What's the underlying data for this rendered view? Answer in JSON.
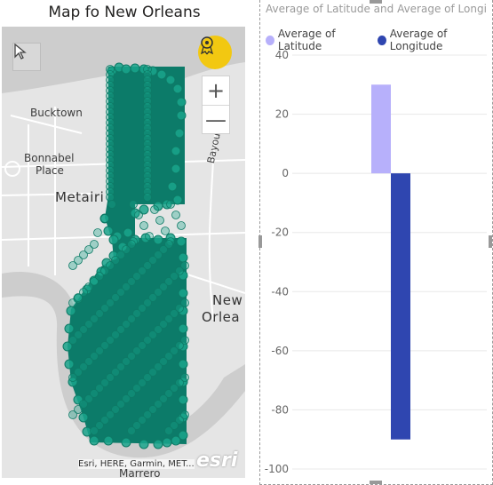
{
  "map": {
    "title": "Map fo New Orleans",
    "labels": {
      "bucktown": "Bucktown",
      "bonnabel_line1": "Bonnabel",
      "bonnabel_line2": "Place",
      "metairie": "Metairi",
      "new": "New",
      "orleans": "Orlea",
      "bayou": "Bayou",
      "marrero": "Marrero"
    },
    "attribution": "Esri, HERE, Garmin, MET...",
    "provider_logo": "esri",
    "controls": {
      "zoom_in": "+",
      "zoom_out": "—",
      "select_icon": "pointer-arrow-icon",
      "badge_icon": "ribbon-badge-icon"
    },
    "colors": {
      "bubble_fill": "#1aa58c",
      "bubble_stroke": "#0e7a66",
      "water": "#cfcfcf",
      "land": "#e8e8e8",
      "road": "#ffffff",
      "badge": "#f2c811"
    }
  },
  "chart": {
    "title": "Average of Latitude and Average of Longi...",
    "legend": [
      {
        "label": "Average of Latitude",
        "color": "#b7b0fb"
      },
      {
        "label": "Average of Longitude",
        "color": "#2f46b0"
      }
    ]
  },
  "chart_data": {
    "type": "bar",
    "title": "Average of Latitude and Average of Longi...",
    "categories": [
      ""
    ],
    "series": [
      {
        "name": "Average of Latitude",
        "values": [
          30
        ],
        "color": "#b7b0fb"
      },
      {
        "name": "Average of Longitude",
        "values": [
          -90
        ],
        "color": "#2f46b0"
      }
    ],
    "ylim": [
      -100,
      40
    ],
    "yticks": [
      40,
      20,
      0,
      -20,
      -40,
      -60,
      -80,
      -100
    ],
    "grid": true,
    "legend_position": "top-left"
  }
}
